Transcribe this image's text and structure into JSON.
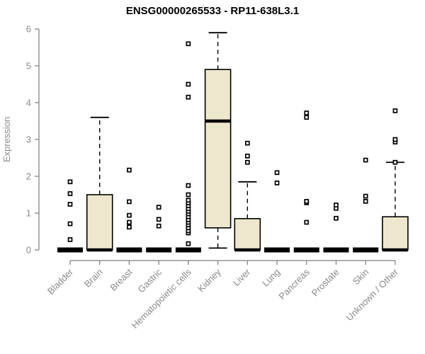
{
  "chart_data": {
    "type": "boxplot",
    "title": "ENSG00000265533 - RP11-638L3.1",
    "ylabel": "Expression",
    "xlabel": "",
    "ylim": [
      0,
      6
    ],
    "yticks": [
      0,
      1,
      2,
      3,
      4,
      5,
      6
    ],
    "grid": false,
    "legend": "none",
    "box_fill_color": "#EDE7CE",
    "box_stroke_color": "#000000",
    "axis_color": "#7d7d7d",
    "tick_label_color": "#8a8a8a",
    "categories": [
      "Bladder",
      "Brain",
      "Breast",
      "Gastric",
      "Hematopoietic cells",
      "Kidney",
      "Liver",
      "Lung",
      "Pancreas",
      "Prostate",
      "Skin",
      "Unknown / Other"
    ],
    "series": [
      {
        "name": "Bladder",
        "q1": 0,
        "median": 0,
        "q3": 0,
        "whisker_low": 0,
        "whisker_high": 0,
        "outliers": [
          0.28,
          0.71,
          1.24,
          1.53,
          1.85
        ]
      },
      {
        "name": "Brain",
        "q1": 0,
        "median": 0,
        "q3": 1.5,
        "whisker_low": 0,
        "whisker_high": 3.6,
        "outliers": []
      },
      {
        "name": "Breast",
        "q1": 0,
        "median": 0,
        "q3": 0,
        "whisker_low": 0,
        "whisker_high": 0,
        "outliers": [
          0.62,
          0.75,
          0.94,
          1.31,
          2.17
        ]
      },
      {
        "name": "Gastric",
        "q1": 0,
        "median": 0,
        "q3": 0,
        "whisker_low": 0,
        "whisker_high": 0,
        "outliers": [
          0.65,
          0.83,
          1.16
        ]
      },
      {
        "name": "Hematopoietic cells",
        "q1": 0,
        "median": 0,
        "q3": 0,
        "whisker_low": 0,
        "whisker_high": 0,
        "outliers": [
          0.17,
          0.46,
          0.52,
          0.6,
          0.68,
          0.75,
          0.82,
          0.9,
          0.98,
          1.05,
          1.12,
          1.2,
          1.28,
          1.35,
          1.5,
          1.75,
          4.15,
          4.5,
          5.6
        ]
      },
      {
        "name": "Kidney",
        "q1": 0.6,
        "median": 3.5,
        "q3": 4.9,
        "whisker_low": 0.05,
        "whisker_high": 5.9,
        "outliers": []
      },
      {
        "name": "Liver",
        "q1": 0,
        "median": 0,
        "q3": 0.85,
        "whisker_low": 0,
        "whisker_high": 1.85,
        "outliers": [
          2.38,
          2.55,
          2.9
        ]
      },
      {
        "name": "Lung",
        "q1": 0,
        "median": 0,
        "q3": 0,
        "whisker_low": 0,
        "whisker_high": 0,
        "outliers": [
          1.82,
          2.1
        ]
      },
      {
        "name": "Pancreas",
        "q1": 0,
        "median": 0,
        "q3": 0,
        "whisker_low": 0,
        "whisker_high": 0,
        "outliers": [
          0.75,
          1.28,
          1.32,
          3.6,
          3.72
        ]
      },
      {
        "name": "Prostate",
        "q1": 0,
        "median": 0,
        "q3": 0,
        "whisker_low": 0,
        "whisker_high": 0,
        "outliers": [
          0.86,
          1.13,
          1.22
        ]
      },
      {
        "name": "Skin",
        "q1": 0,
        "median": 0,
        "q3": 0,
        "whisker_low": 0,
        "whisker_high": 0,
        "outliers": [
          1.32,
          1.46,
          2.44
        ]
      },
      {
        "name": "Unknown / Other",
        "q1": 0,
        "median": 0,
        "q3": 0.9,
        "whisker_low": 0,
        "whisker_high": 2.38,
        "outliers": [
          2.38,
          2.93,
          3.0,
          3.78
        ]
      }
    ]
  }
}
